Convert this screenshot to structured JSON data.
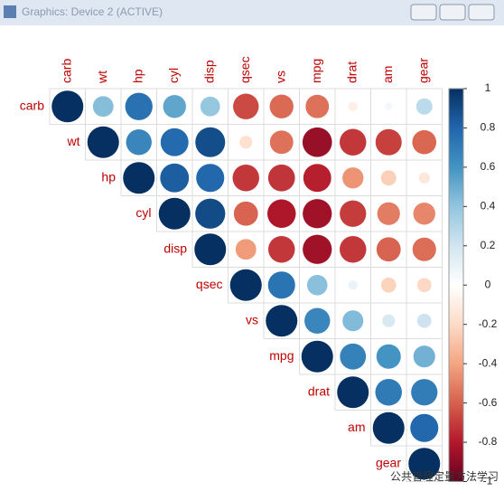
{
  "window_title": "Graphics: Device 2 (ACTIVE)",
  "watermark": "公共管理定量方法学习",
  "chart_data": {
    "type": "corrplot",
    "shape": "circle",
    "triangle": "upper",
    "variables": [
      "carb",
      "wt",
      "hp",
      "cyl",
      "disp",
      "qsec",
      "vs",
      "mpg",
      "drat",
      "am",
      "gear"
    ],
    "matrix": [
      [
        1,
        0.43,
        0.75,
        0.53,
        0.39,
        -0.66,
        -0.57,
        -0.55,
        -0.09,
        0.06,
        0.27
      ],
      [
        null,
        1,
        0.66,
        0.78,
        0.89,
        -0.17,
        -0.55,
        -0.87,
        -0.71,
        -0.69,
        -0.58
      ],
      [
        null,
        null,
        1,
        0.83,
        0.79,
        -0.71,
        -0.72,
        -0.78,
        -0.45,
        -0.24,
        -0.13
      ],
      [
        null,
        null,
        null,
        1,
        0.9,
        -0.59,
        -0.81,
        -0.85,
        -0.7,
        -0.52,
        -0.49
      ],
      [
        null,
        null,
        null,
        null,
        1,
        -0.43,
        -0.71,
        -0.85,
        -0.71,
        -0.59,
        -0.56
      ],
      [
        null,
        null,
        null,
        null,
        null,
        1,
        0.74,
        0.42,
        0.09,
        -0.23,
        -0.21
      ],
      [
        null,
        null,
        null,
        null,
        null,
        null,
        1,
        0.66,
        0.44,
        0.17,
        0.21
      ],
      [
        null,
        null,
        null,
        null,
        null,
        null,
        null,
        1,
        0.68,
        0.6,
        0.48
      ],
      [
        null,
        null,
        null,
        null,
        null,
        null,
        null,
        null,
        1,
        0.71,
        0.7
      ],
      [
        null,
        null,
        null,
        null,
        null,
        null,
        null,
        null,
        null,
        1,
        0.79
      ],
      [
        null,
        null,
        null,
        null,
        null,
        null,
        null,
        null,
        null,
        null,
        1
      ]
    ],
    "colors": [
      "#67001F",
      "#B2182B",
      "#D6604D",
      "#F4A582",
      "#FDDBC7",
      "#FFFFFF",
      "#D1E5F0",
      "#92C5DE",
      "#4393C3",
      "#2166AC",
      "#053061"
    ],
    "label_color": "#C00000",
    "colorbar_lim": [
      -1,
      1
    ],
    "colorbar_ticks": [
      -1,
      -0.8,
      -0.6,
      -0.4,
      -0.2,
      0,
      0.2,
      0.4,
      0.6,
      0.8,
      1
    ]
  }
}
